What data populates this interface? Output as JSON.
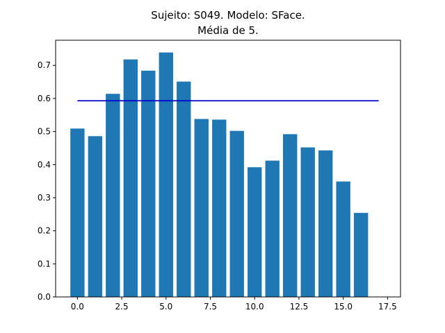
{
  "chart_data": {
    "type": "bar",
    "title": "Sujeito: S049. Modelo: SFace.",
    "subtitle": "Média de 5.",
    "xlabel": "",
    "ylabel": "",
    "x": [
      0,
      1,
      2,
      3,
      4,
      5,
      6,
      7,
      8,
      9,
      10,
      11,
      12,
      13,
      14,
      15,
      16
    ],
    "values": [
      0.509,
      0.486,
      0.614,
      0.718,
      0.684,
      0.739,
      0.651,
      0.538,
      0.536,
      0.502,
      0.392,
      0.412,
      0.492,
      0.452,
      0.443,
      0.349,
      0.254
    ],
    "bar_color": "#1f77b4",
    "reference_line": {
      "y": 0.593,
      "x_from": 0,
      "x_to": 17,
      "color": "#0000cc"
    },
    "xlim": [
      -1.23,
      18.23
    ],
    "ylim": [
      0,
      0.776
    ],
    "xticks": [
      0.0,
      2.5,
      5.0,
      7.5,
      10.0,
      12.5,
      15.0,
      17.5
    ],
    "xtick_labels": [
      "0.0",
      "2.5",
      "5.0",
      "7.5",
      "10.0",
      "12.5",
      "15.0",
      "17.5"
    ],
    "yticks": [
      0.0,
      0.1,
      0.2,
      0.3,
      0.4,
      0.5,
      0.6,
      0.7
    ],
    "ytick_labels": [
      "0.0",
      "0.1",
      "0.2",
      "0.3",
      "0.4",
      "0.5",
      "0.6",
      "0.7"
    ],
    "grid": false,
    "legend": "none"
  }
}
